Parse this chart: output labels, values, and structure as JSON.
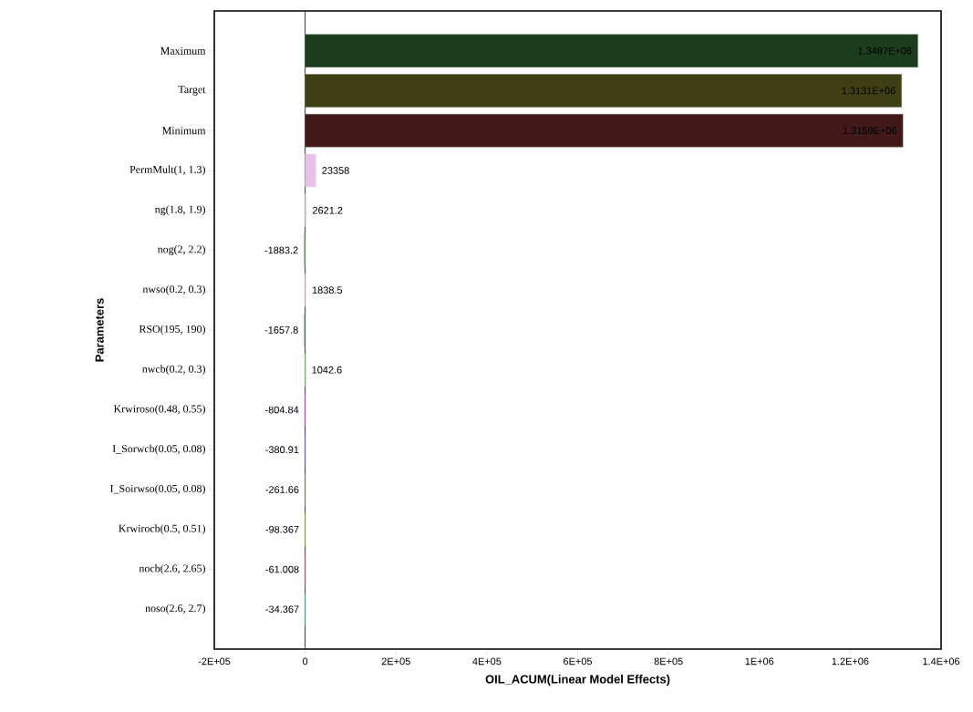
{
  "chart_data": {
    "type": "bar",
    "orientation": "horizontal",
    "xlabel": "OIL_ACUM(Linear Model Effects)",
    "ylabel": "Parameters",
    "categories": [
      "Maximum",
      "Target",
      "Minimum",
      "PermMult(1, 1.3)",
      "ng(1.8, 1.9)",
      "nog(2, 2.2)",
      "nwso(0.2, 0.3)",
      "RSO(195, 190)",
      "nwcb(0.2, 0.3)",
      "Krwiroso(0.48, 0.55)",
      "I_Sorwcb(0.05, 0.08)",
      "I_Soirwso(0.05, 0.08)",
      "Krwirocb(0.5, 0.51)",
      "nocb(2.6, 2.65)",
      "noso(2.6, 2.7)"
    ],
    "values": [
      1348700,
      1313100,
      1315900,
      23358,
      2621.2,
      -1883.2,
      1838.5,
      -1657.8,
      1042.6,
      -804.84,
      -380.91,
      -261.66,
      -98.367,
      -61.008,
      -34.367
    ],
    "value_labels": [
      "1.3487E+06",
      "1.3131E+06",
      "1.3159E+06",
      "23358",
      "2621.2",
      "-1883.2",
      "1838.5",
      "-1657.8",
      "1042.6",
      "-804.84",
      "-380.91",
      "-261.66",
      "-98.367",
      "-61.008",
      "-34.367"
    ],
    "colors": [
      "#1b3d1b",
      "#3f3f15",
      "#421818",
      "#e8c0e8",
      "#d8d8f0",
      "#5a8a5a",
      "#f8d8e0",
      "#3a5a5a",
      "#70d070",
      "#a030a0",
      "#3030a0",
      "#606040",
      "#a0a020",
      "#a03030",
      "#30a0a0"
    ],
    "xlim": [
      -200000,
      1400000
    ],
    "xticks": [
      {
        "value": -200000,
        "label": "-2E+05"
      },
      0,
      {
        "value": 200000,
        "label": "2E+05"
      },
      {
        "value": 400000,
        "label": "4E+05"
      },
      {
        "value": 600000,
        "label": "6E+05"
      },
      {
        "value": 800000,
        "label": "8E+05"
      },
      {
        "value": 1000000,
        "label": "1E+06"
      },
      {
        "value": 1200000,
        "label": "1.2E+06"
      },
      {
        "value": 1400000,
        "label": "1.4E+06"
      }
    ]
  }
}
